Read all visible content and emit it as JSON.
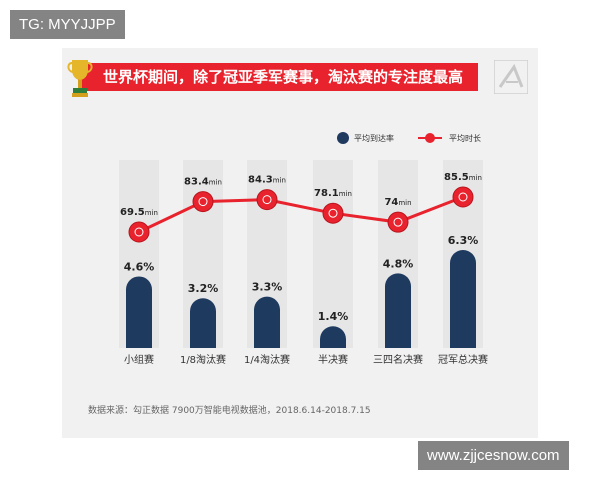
{
  "watermarks": {
    "top_left": "TG: MYYJJPP",
    "bottom_right": "www.zjjcesnow.com"
  },
  "title": "世界杯期间，除了冠亚季军赛事，淘汰赛的专注度最高",
  "source": "数据来源：勾正数据 7900万智能电视数据池，2018.6.14-2018.7.15",
  "colors": {
    "bar": "#1f3a5f",
    "line": "#e8232d",
    "bg_column": "#e6e6e6",
    "title_bg": "#e8232d"
  },
  "icons": {
    "trophy": "trophy-icon",
    "logo": "corner-logo-icon"
  },
  "chart_data": {
    "type": "bar+line",
    "categories": [
      "小组赛",
      "1/8淘汰赛",
      "1/4淘汰赛",
      "半决赛",
      "三四名决赛",
      "冠军总决赛"
    ],
    "legend": [
      "平均到达率",
      "平均时长"
    ],
    "legend_position": "top-right",
    "series": [
      {
        "name": "平均到达率",
        "type": "bar",
        "values": [
          4.6,
          3.2,
          3.3,
          1.4,
          4.8,
          6.3
        ],
        "labels": [
          "4.6%",
          "3.2%",
          "3.3%",
          "1.4%",
          "4.8%",
          "6.3%"
        ]
      },
      {
        "name": "平均时长",
        "type": "line",
        "values": [
          69.5,
          83.4,
          84.3,
          78.1,
          74,
          85.5
        ],
        "labels": [
          "69.5",
          "83.4",
          "84.3",
          "78.1",
          "74",
          "85.5"
        ],
        "unit": "min"
      }
    ]
  }
}
